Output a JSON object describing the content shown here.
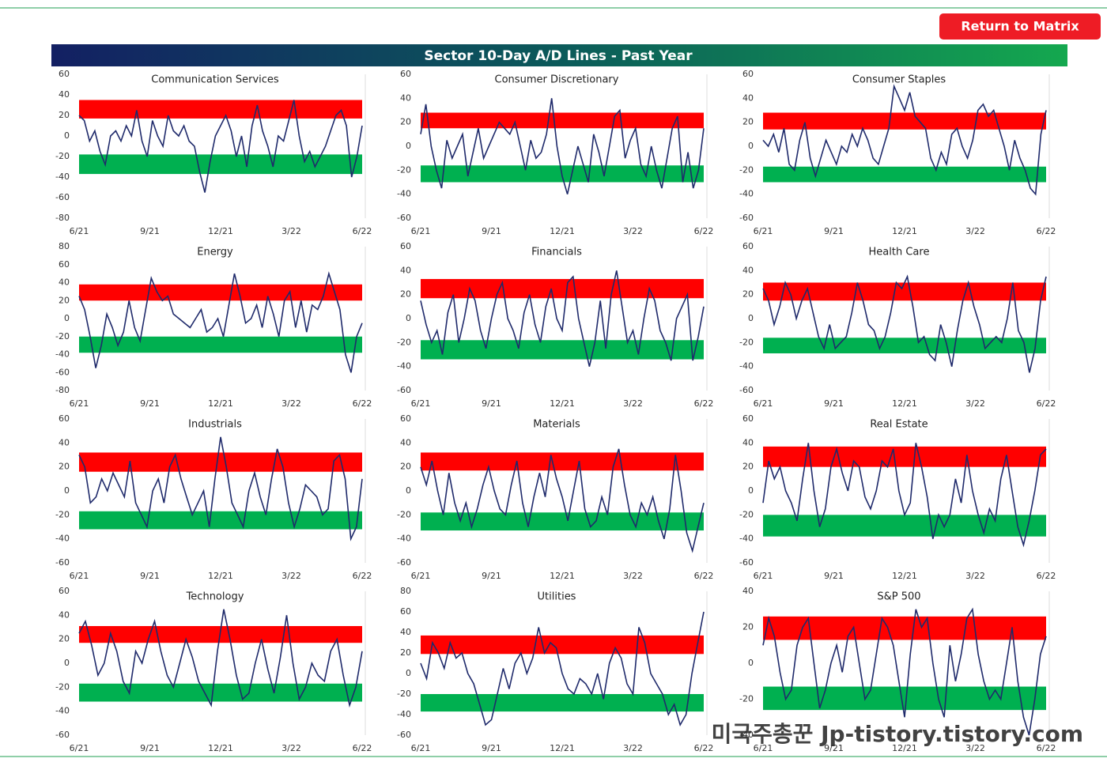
{
  "page": {
    "button": "Return to Matrix",
    "title": "Sector 10-Day A/D Lines - Past Year",
    "watermark": "미국주총꾼 Jp-tistory.tistory.com"
  },
  "chart_data": [
    {
      "type": "line",
      "title": "Communication Services",
      "ylim": [
        -80,
        60
      ],
      "yticks": [
        60,
        40,
        20,
        0,
        -20,
        -40,
        -60,
        -80
      ],
      "xticks": [
        "6/21",
        "9/21",
        "12/21",
        "3/22",
        "6/22"
      ],
      "color": "#1f2a6b",
      "bands": [
        {
          "color": "#ff0000",
          "range": [
            17,
            35
          ]
        },
        {
          "color": "#00b050",
          "range": [
            -37,
            -18
          ]
        }
      ],
      "values": [
        20,
        15,
        -5,
        5,
        -15,
        -28,
        0,
        5,
        -5,
        10,
        0,
        25,
        -5,
        -20,
        15,
        0,
        -10,
        20,
        5,
        0,
        10,
        -5,
        -10,
        -35,
        -55,
        -25,
        0,
        10,
        20,
        5,
        -20,
        0,
        -30,
        10,
        30,
        5,
        -10,
        -30,
        0,
        -5,
        15,
        35,
        0,
        -25,
        -15,
        -30,
        -20,
        -10,
        5,
        20,
        25,
        10,
        -40,
        -20,
        10
      ]
    },
    {
      "type": "line",
      "title": "Consumer Discretionary",
      "ylim": [
        -60,
        60
      ],
      "yticks": [
        60,
        40,
        20,
        0,
        -20,
        -40,
        -60
      ],
      "xticks": [
        "6/21",
        "9/21",
        "12/21",
        "3/22",
        "6/22"
      ],
      "color": "#1f2a6b",
      "bands": [
        {
          "color": "#ff0000",
          "range": [
            15,
            28
          ]
        },
        {
          "color": "#00b050",
          "range": [
            -30,
            -16
          ]
        }
      ],
      "values": [
        10,
        35,
        0,
        -20,
        -35,
        5,
        -10,
        0,
        10,
        -25,
        -5,
        15,
        -10,
        0,
        10,
        20,
        15,
        10,
        20,
        0,
        -20,
        5,
        -10,
        -5,
        10,
        40,
        0,
        -25,
        -40,
        -20,
        0,
        -15,
        -30,
        10,
        -5,
        -25,
        0,
        25,
        30,
        -10,
        5,
        15,
        -15,
        -25,
        0,
        -20,
        -35,
        -10,
        15,
        25,
        -30,
        -5,
        -35,
        -20,
        15
      ]
    },
    {
      "type": "line",
      "title": "Consumer Staples",
      "ylim": [
        -60,
        60
      ],
      "yticks": [
        60,
        40,
        20,
        0,
        -20,
        -40,
        -60
      ],
      "xticks": [
        "6/21",
        "9/21",
        "12/21",
        "3/22",
        "6/22"
      ],
      "color": "#1f2a6b",
      "bands": [
        {
          "color": "#ff0000",
          "range": [
            14,
            28
          ]
        },
        {
          "color": "#00b050",
          "range": [
            -30,
            -17
          ]
        }
      ],
      "values": [
        5,
        0,
        10,
        -5,
        15,
        -15,
        -20,
        5,
        20,
        -10,
        -25,
        -10,
        5,
        -5,
        -15,
        0,
        -5,
        10,
        0,
        15,
        5,
        -10,
        -15,
        0,
        15,
        50,
        40,
        30,
        45,
        25,
        20,
        15,
        -10,
        -20,
        -5,
        -15,
        10,
        15,
        0,
        -10,
        5,
        30,
        35,
        25,
        30,
        15,
        0,
        -20,
        5,
        -10,
        -20,
        -35,
        -40,
        10,
        30
      ]
    },
    {
      "type": "line",
      "title": "Energy",
      "ylim": [
        -80,
        80
      ],
      "yticks": [
        80,
        60,
        40,
        20,
        0,
        -20,
        -40,
        -60,
        -80
      ],
      "xticks": [
        "6/21",
        "9/21",
        "12/21",
        "3/22",
        "6/22"
      ],
      "color": "#1f2a6b",
      "bands": [
        {
          "color": "#ff0000",
          "range": [
            20,
            38
          ]
        },
        {
          "color": "#00b050",
          "range": [
            -38,
            -20
          ]
        }
      ],
      "values": [
        25,
        10,
        -20,
        -55,
        -30,
        5,
        -10,
        -30,
        -15,
        20,
        -10,
        -25,
        10,
        45,
        30,
        20,
        25,
        5,
        0,
        -5,
        -10,
        0,
        10,
        -15,
        -10,
        0,
        -20,
        15,
        50,
        25,
        -5,
        0,
        15,
        -10,
        25,
        5,
        -20,
        20,
        30,
        -10,
        20,
        -15,
        15,
        10,
        25,
        50,
        30,
        10,
        -40,
        -60,
        -20,
        -5
      ]
    },
    {
      "type": "line",
      "title": "Financials",
      "ylim": [
        -60,
        60
      ],
      "yticks": [
        60,
        40,
        20,
        0,
        -20,
        -40,
        -60
      ],
      "xticks": [
        "6/21",
        "9/21",
        "12/21",
        "3/22",
        "6/22"
      ],
      "color": "#1f2a6b",
      "bands": [
        {
          "color": "#ff0000",
          "range": [
            17,
            33
          ]
        },
        {
          "color": "#00b050",
          "range": [
            -34,
            -18
          ]
        }
      ],
      "values": [
        15,
        -5,
        -20,
        -10,
        -30,
        5,
        20,
        -20,
        0,
        25,
        15,
        -10,
        -25,
        0,
        20,
        30,
        0,
        -10,
        -25,
        5,
        20,
        -5,
        -20,
        10,
        25,
        0,
        -10,
        30,
        35,
        0,
        -20,
        -40,
        -20,
        15,
        -25,
        20,
        40,
        10,
        -20,
        -10,
        -30,
        0,
        25,
        15,
        -10,
        -20,
        -35,
        0,
        10,
        20,
        -35,
        -15,
        10
      ]
    },
    {
      "type": "line",
      "title": "Health Care",
      "ylim": [
        -60,
        60
      ],
      "yticks": [
        60,
        40,
        20,
        0,
        -20,
        -40,
        -60
      ],
      "xticks": [
        "6/21",
        "9/21",
        "12/21",
        "3/22",
        "6/22"
      ],
      "color": "#1f2a6b",
      "bands": [
        {
          "color": "#ff0000",
          "range": [
            15,
            30
          ]
        },
        {
          "color": "#00b050",
          "range": [
            -29,
            -16
          ]
        }
      ],
      "values": [
        25,
        15,
        -5,
        10,
        30,
        20,
        0,
        15,
        25,
        5,
        -15,
        -25,
        -5,
        -25,
        -20,
        -15,
        5,
        30,
        15,
        -5,
        -10,
        -25,
        -15,
        5,
        30,
        25,
        35,
        10,
        -20,
        -15,
        -30,
        -35,
        -5,
        -20,
        -40,
        -10,
        15,
        30,
        10,
        -5,
        -25,
        -20,
        -15,
        -20,
        0,
        30,
        -10,
        -20,
        -45,
        -25,
        15,
        35
      ]
    },
    {
      "type": "line",
      "title": "Industrials",
      "ylim": [
        -60,
        60
      ],
      "yticks": [
        60,
        40,
        20,
        0,
        -20,
        -40,
        -60
      ],
      "xticks": [
        "6/21",
        "9/21",
        "12/21",
        "3/22",
        "6/22"
      ],
      "color": "#1f2a6b",
      "bands": [
        {
          "color": "#ff0000",
          "range": [
            16,
            32
          ]
        },
        {
          "color": "#00b050",
          "range": [
            -32,
            -17
          ]
        }
      ],
      "values": [
        30,
        20,
        -10,
        -5,
        10,
        0,
        15,
        5,
        -5,
        25,
        -10,
        -20,
        -30,
        0,
        10,
        -10,
        20,
        30,
        10,
        -5,
        -20,
        -10,
        0,
        -30,
        10,
        45,
        20,
        -10,
        -20,
        -30,
        0,
        15,
        -5,
        -20,
        10,
        35,
        20,
        -10,
        -30,
        -15,
        5,
        0,
        -5,
        -20,
        -15,
        25,
        30,
        10,
        -40,
        -30,
        10
      ]
    },
    {
      "type": "line",
      "title": "Materials",
      "ylim": [
        -60,
        60
      ],
      "yticks": [
        60,
        40,
        20,
        0,
        -20,
        -40,
        -60
      ],
      "xticks": [
        "6/21",
        "9/21",
        "12/21",
        "3/22",
        "6/22"
      ],
      "color": "#1f2a6b",
      "bands": [
        {
          "color": "#ff0000",
          "range": [
            17,
            32
          ]
        },
        {
          "color": "#00b050",
          "range": [
            -33,
            -18
          ]
        }
      ],
      "values": [
        20,
        5,
        25,
        0,
        -20,
        15,
        -10,
        -25,
        -10,
        -30,
        -15,
        5,
        20,
        0,
        -15,
        -20,
        5,
        25,
        -10,
        -30,
        -5,
        15,
        -5,
        30,
        10,
        -5,
        -25,
        0,
        25,
        -15,
        -30,
        -25,
        -5,
        -20,
        20,
        35,
        5,
        -20,
        -30,
        -10,
        -20,
        -5,
        -25,
        -40,
        -15,
        30,
        0,
        -35,
        -50,
        -30,
        -10
      ]
    },
    {
      "type": "line",
      "title": "Real Estate",
      "ylim": [
        -60,
        60
      ],
      "yticks": [
        60,
        40,
        20,
        0,
        -20,
        -40,
        -60
      ],
      "xticks": [
        "6/21",
        "9/21",
        "12/21",
        "3/22",
        "6/22"
      ],
      "color": "#1f2a6b",
      "bands": [
        {
          "color": "#ff0000",
          "range": [
            20,
            37
          ]
        },
        {
          "color": "#00b050",
          "range": [
            -38,
            -20
          ]
        }
      ],
      "values": [
        -10,
        25,
        10,
        20,
        0,
        -10,
        -25,
        10,
        40,
        0,
        -30,
        -15,
        20,
        35,
        15,
        0,
        25,
        20,
        -5,
        -15,
        0,
        25,
        20,
        35,
        0,
        -20,
        -10,
        40,
        20,
        -5,
        -40,
        -20,
        -30,
        -20,
        10,
        -10,
        30,
        0,
        -20,
        -35,
        -15,
        -25,
        10,
        30,
        0,
        -30,
        -45,
        -25,
        0,
        30,
        35
      ]
    },
    {
      "type": "line",
      "title": "Technology",
      "ylim": [
        -60,
        60
      ],
      "yticks": [
        60,
        40,
        20,
        0,
        -20,
        -40,
        -60
      ],
      "xticks": [
        "6/21",
        "9/21",
        "12/21",
        "3/22",
        "6/22"
      ],
      "color": "#1f2a6b",
      "bands": [
        {
          "color": "#ff0000",
          "range": [
            17,
            31
          ]
        },
        {
          "color": "#00b050",
          "range": [
            -32,
            -17
          ]
        }
      ],
      "values": [
        25,
        35,
        15,
        -10,
        0,
        25,
        10,
        -15,
        -25,
        10,
        0,
        20,
        35,
        10,
        -10,
        -20,
        0,
        20,
        5,
        -15,
        -25,
        -35,
        10,
        45,
        20,
        -10,
        -30,
        -25,
        0,
        20,
        -5,
        -25,
        5,
        40,
        0,
        -30,
        -20,
        0,
        -10,
        -15,
        10,
        20,
        -10,
        -35,
        -20,
        10
      ]
    },
    {
      "type": "line",
      "title": "Utilities",
      "ylim": [
        -60,
        80
      ],
      "yticks": [
        80,
        60,
        40,
        20,
        0,
        -20,
        -40,
        -60
      ],
      "xticks": [
        "6/21",
        "9/21",
        "12/21",
        "3/22",
        "6/22"
      ],
      "color": "#1f2a6b",
      "bands": [
        {
          "color": "#ff0000",
          "range": [
            19,
            37
          ]
        },
        {
          "color": "#00b050",
          "range": [
            -37,
            -20
          ]
        }
      ],
      "values": [
        10,
        -5,
        30,
        20,
        5,
        30,
        15,
        20,
        0,
        -10,
        -30,
        -50,
        -45,
        -20,
        5,
        -15,
        10,
        20,
        0,
        15,
        45,
        20,
        30,
        25,
        0,
        -15,
        -20,
        -5,
        -10,
        -20,
        0,
        -25,
        10,
        25,
        15,
        -10,
        -20,
        45,
        30,
        0,
        -10,
        -20,
        -40,
        -30,
        -50,
        -40,
        0,
        30,
        60
      ]
    },
    {
      "type": "line",
      "title": "S&P 500",
      "ylim": [
        -40,
        40
      ],
      "yticks": [
        40,
        20,
        0,
        -20,
        -40
      ],
      "xticks": [
        "6/21",
        "9/21",
        "12/21",
        "3/22",
        "6/22"
      ],
      "color": "#1f2a6b",
      "bands": [
        {
          "color": "#ff0000",
          "range": [
            13,
            26
          ]
        },
        {
          "color": "#00b050",
          "range": [
            -26,
            -13
          ]
        }
      ],
      "values": [
        10,
        25,
        15,
        -5,
        -20,
        -15,
        10,
        20,
        25,
        0,
        -25,
        -15,
        0,
        10,
        -5,
        15,
        20,
        0,
        -20,
        -15,
        5,
        25,
        20,
        10,
        -10,
        -30,
        5,
        30,
        20,
        25,
        0,
        -20,
        -30,
        10,
        -10,
        5,
        25,
        30,
        5,
        -10,
        -20,
        -15,
        -20,
        0,
        20,
        -10,
        -30,
        -40,
        -20,
        5,
        15
      ]
    }
  ]
}
